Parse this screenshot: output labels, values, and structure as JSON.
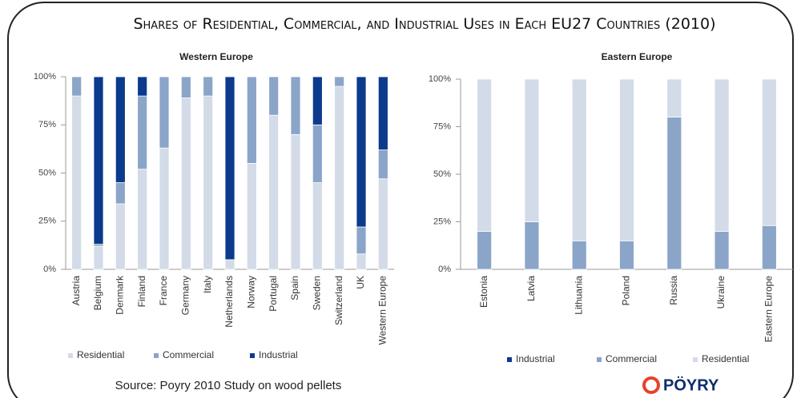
{
  "title": "Shares of Residential, Commercial, and Industrial Uses in Each EU27 Countries (2010)",
  "source": "Source: Poyry 2010 Study on wood pellets",
  "logo": "PÖYRY",
  "chart_data": [
    {
      "type": "stacked_bar",
      "title": "Western Europe",
      "categories": [
        "Austria",
        "Belgium",
        "Denmark",
        "Finland",
        "France",
        "Germany",
        "Italy",
        "Netherlands",
        "Norway",
        "Portugal",
        "Spain",
        "Sweden",
        "Switzerland",
        "UK",
        "Western Europe"
      ],
      "series": [
        {
          "name": "Residential",
          "color": "#d3dbe8",
          "values": [
            90,
            12,
            34,
            52,
            63,
            89,
            90,
            5,
            55,
            80,
            70,
            45,
            95,
            8,
            47
          ]
        },
        {
          "name": "Commercial",
          "color": "#8ba5c9",
          "values": [
            10,
            1,
            11,
            38,
            37,
            11,
            10,
            0,
            45,
            20,
            30,
            30,
            5,
            14,
            15
          ]
        },
        {
          "name": "Industrial",
          "color": "#0c3a8c",
          "values": [
            0,
            87,
            55,
            10,
            0,
            0,
            0,
            95,
            0,
            0,
            0,
            25,
            0,
            78,
            38
          ]
        }
      ],
      "ylim": [
        0,
        100
      ],
      "yticks": [
        {
          "value": 0,
          "label": "0%"
        },
        {
          "value": 25,
          "label": "25%"
        },
        {
          "value": 50,
          "label": "50%"
        },
        {
          "value": 75,
          "label": "75%"
        },
        {
          "value": 100,
          "label": "100%"
        }
      ],
      "legend": "bottom"
    },
    {
      "type": "stacked_bar",
      "title": "Eastern Europe",
      "categories": [
        "Estonia",
        "Latvia",
        "Lithuania",
        "Poland",
        "Russia",
        "Ukraine",
        "Eastern Europe"
      ],
      "series": [
        {
          "name": "Industrial",
          "color": "#0c3a8c",
          "values": [
            0,
            0,
            0,
            0,
            0,
            0,
            0
          ]
        },
        {
          "name": "Commercial",
          "color": "#8ba5c9",
          "values": [
            20,
            25,
            15,
            15,
            80,
            20,
            23
          ]
        },
        {
          "name": "Residential",
          "color": "#d3dbe8",
          "values": [
            80,
            75,
            85,
            85,
            20,
            80,
            77
          ]
        }
      ],
      "ylim": [
        0,
        100
      ],
      "yticks": [
        {
          "value": 0,
          "label": "0%"
        },
        {
          "value": 25,
          "label": "25%"
        },
        {
          "value": 50,
          "label": "50%"
        },
        {
          "value": 75,
          "label": "75%"
        },
        {
          "value": 100,
          "label": "100%"
        }
      ],
      "legend": "bottom"
    }
  ]
}
